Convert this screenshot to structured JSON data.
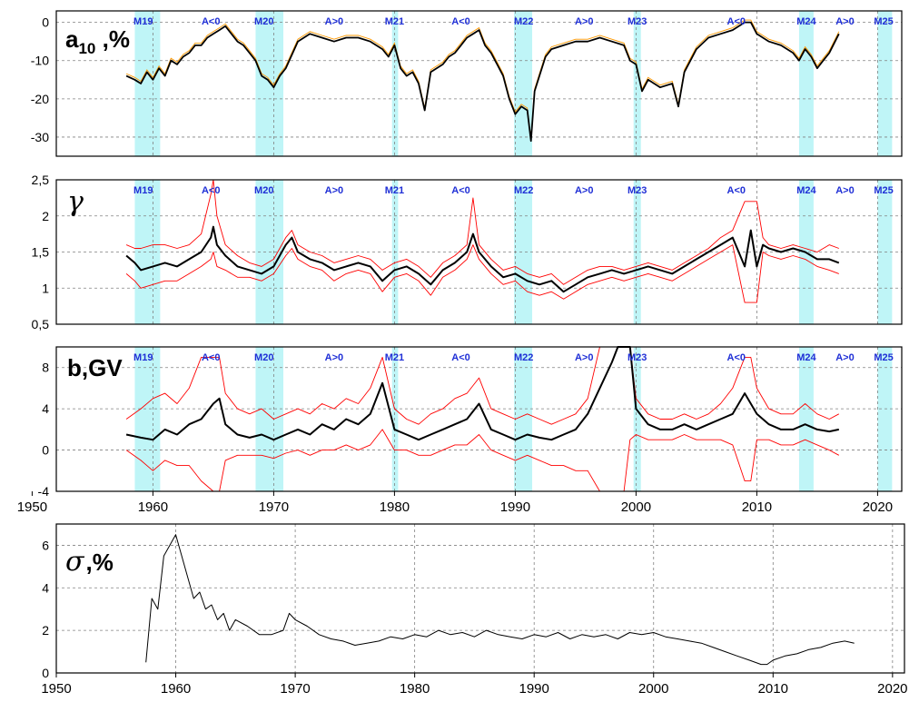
{
  "colors": {
    "band": "#bff5f7",
    "main_line": "#000000",
    "a10_secondary": "#ff9900",
    "band_line": "#ff0000",
    "sigma_line": "#000000",
    "cycle_label": "#1f2fd6"
  },
  "chart_data": [
    {
      "type": "line",
      "title": "a10 ,%",
      "title_main": "a",
      "title_sub": "10",
      "title_suffix": " ,%",
      "xlim": [
        1952,
        2022
      ],
      "ylim": [
        -35,
        3
      ],
      "yticks": [
        "0",
        "-10",
        "-20",
        "-30"
      ],
      "ytick_values": [
        0,
        -10,
        -20,
        -30
      ],
      "grid": true,
      "x": [
        1957.8,
        1958.5,
        1959,
        1959.5,
        1960,
        1960.5,
        1961,
        1961.5,
        1962,
        1962.5,
        1963,
        1963.5,
        1964,
        1964.5,
        1965,
        1965.5,
        1966,
        1966.5,
        1967,
        1967.5,
        1968,
        1968.5,
        1969,
        1969.5,
        1970,
        1970.5,
        1971,
        1972,
        1973,
        1974,
        1975,
        1976,
        1977,
        1978,
        1979,
        1979.5,
        1980,
        1980.5,
        1981,
        1981.5,
        1982,
        1982.5,
        1983,
        1984,
        1984.5,
        1985,
        1985.5,
        1986,
        1986.5,
        1987,
        1987.5,
        1988,
        1988.5,
        1989,
        1989.5,
        1990,
        1990.5,
        1991,
        1991.3,
        1991.6,
        1992,
        1992.5,
        1993,
        1994,
        1995,
        1996,
        1997,
        1998,
        1999,
        1999.5,
        2000,
        2000.5,
        2001,
        2002,
        2003,
        2003.5,
        2004,
        2005,
        2006,
        2007,
        2008,
        2009,
        2009.5,
        2010,
        2011,
        2012,
        2013,
        2013.5,
        2014,
        2014.5,
        2015,
        2015.5,
        2016,
        2016.8
      ],
      "series": [
        {
          "values": [
            -14,
            -15,
            -16,
            -13,
            -15,
            -12,
            -14,
            -10,
            -11,
            -9,
            -8,
            -6,
            -6,
            -4,
            -3,
            -2,
            -1,
            -3,
            -5,
            -6,
            -8,
            -10,
            -14,
            -15,
            -17,
            -14,
            -12,
            -5,
            -3,
            -4,
            -5,
            -4,
            -4,
            -5,
            -7,
            -9,
            -6,
            -12,
            -14,
            -13,
            -16,
            -23,
            -13,
            -11,
            -9,
            -8,
            -6,
            -4,
            -3,
            -2,
            -6,
            -8,
            -11,
            -14,
            -20,
            -24,
            -22,
            -23,
            -31,
            -18,
            -14,
            -9,
            -7,
            -6,
            -5,
            -5,
            -4,
            -5,
            -6,
            -10,
            -11,
            -18,
            -15,
            -17,
            -16,
            -22,
            -13,
            -7,
            -4,
            -3,
            -2,
            0,
            0,
            -3,
            -5,
            -6,
            -8,
            -10,
            -7,
            -9,
            -12,
            -10,
            -8,
            -3
          ]
        }
      ],
      "cycle_labels": [
        {
          "text": "M19",
          "x": 1959.2
        },
        {
          "text": "A<0",
          "x": 1964.8
        },
        {
          "text": "M20",
          "x": 1969.2
        },
        {
          "text": "A>0",
          "x": 1975
        },
        {
          "text": "M21",
          "x": 1980
        },
        {
          "text": "A<0",
          "x": 1985.5
        },
        {
          "text": "M22",
          "x": 1990.7
        },
        {
          "text": "A>0",
          "x": 1995.7
        },
        {
          "text": "M23",
          "x": 2000.1
        },
        {
          "text": "A<0",
          "x": 2008.3
        },
        {
          "text": "M24",
          "x": 2014.1
        },
        {
          "text": "A>0",
          "x": 2017.3
        },
        {
          "text": "M25",
          "x": 2020.5
        }
      ]
    },
    {
      "type": "line",
      "title": "γ",
      "xlim": [
        1952,
        2022
      ],
      "ylim": [
        0.5,
        2.5
      ],
      "yticks": [
        "2,5",
        "2",
        "1,5",
        "1",
        "0,5"
      ],
      "ytick_values": [
        2.5,
        2,
        1.5,
        1,
        0.5
      ],
      "grid": true,
      "x": [
        1957.8,
        1958.5,
        1959,
        1960,
        1961,
        1962,
        1963,
        1964,
        1964.8,
        1965,
        1965.3,
        1966,
        1967,
        1968,
        1969,
        1970,
        1971,
        1971.5,
        1972,
        1973,
        1974,
        1975,
        1976,
        1977,
        1978,
        1979,
        1980,
        1981,
        1982,
        1983,
        1984,
        1985,
        1986,
        1986.5,
        1987,
        1988,
        1989,
        1990,
        1991,
        1992,
        1993,
        1994,
        1995,
        1996,
        1997,
        1998,
        1999,
        2000,
        2001,
        2002,
        2003,
        2004,
        2005,
        2006,
        2007,
        2008,
        2009,
        2009.5,
        2010,
        2010.5,
        2011,
        2012,
        2013,
        2014,
        2015,
        2016,
        2016.8
      ],
      "series": [
        {
          "values": [
            1.45,
            1.35,
            1.25,
            1.3,
            1.35,
            1.3,
            1.4,
            1.5,
            1.7,
            1.85,
            1.6,
            1.45,
            1.3,
            1.25,
            1.2,
            1.3,
            1.6,
            1.7,
            1.5,
            1.4,
            1.35,
            1.25,
            1.3,
            1.35,
            1.3,
            1.1,
            1.25,
            1.3,
            1.2,
            1.05,
            1.25,
            1.35,
            1.5,
            1.75,
            1.5,
            1.3,
            1.15,
            1.2,
            1.1,
            1.05,
            1.1,
            0.95,
            1.05,
            1.15,
            1.2,
            1.25,
            1.2,
            1.25,
            1.3,
            1.25,
            1.2,
            1.3,
            1.4,
            1.5,
            1.6,
            1.7,
            1.3,
            1.8,
            1.3,
            1.6,
            1.55,
            1.5,
            1.55,
            1.5,
            1.4,
            1.4,
            1.35
          ]
        },
        {
          "values": [
            1.6,
            1.55,
            1.55,
            1.6,
            1.6,
            1.55,
            1.6,
            1.75,
            2.3,
            2.5,
            2.0,
            1.6,
            1.45,
            1.35,
            1.3,
            1.4,
            1.7,
            1.8,
            1.6,
            1.5,
            1.45,
            1.35,
            1.4,
            1.45,
            1.4,
            1.25,
            1.35,
            1.4,
            1.3,
            1.15,
            1.35,
            1.45,
            1.6,
            2.25,
            1.6,
            1.4,
            1.25,
            1.3,
            1.2,
            1.15,
            1.2,
            1.05,
            1.15,
            1.25,
            1.3,
            1.3,
            1.25,
            1.3,
            1.35,
            1.3,
            1.25,
            1.35,
            1.45,
            1.55,
            1.7,
            1.8,
            2.2,
            2.2,
            2.2,
            1.7,
            1.6,
            1.55,
            1.6,
            1.55,
            1.5,
            1.6,
            1.55
          ]
        },
        {
          "values": [
            1.2,
            1.1,
            1.0,
            1.05,
            1.1,
            1.1,
            1.2,
            1.3,
            1.4,
            1.5,
            1.3,
            1.25,
            1.15,
            1.15,
            1.1,
            1.2,
            1.45,
            1.55,
            1.4,
            1.3,
            1.25,
            1.1,
            1.2,
            1.25,
            1.2,
            0.95,
            1.15,
            1.2,
            1.1,
            0.9,
            1.15,
            1.25,
            1.4,
            1.6,
            1.4,
            1.2,
            1.05,
            1.1,
            0.95,
            0.9,
            0.95,
            0.85,
            0.95,
            1.05,
            1.1,
            1.15,
            1.1,
            1.15,
            1.2,
            1.15,
            1.1,
            1.2,
            1.3,
            1.4,
            1.5,
            1.6,
            0.8,
            0.8,
            0.8,
            1.5,
            1.45,
            1.4,
            1.45,
            1.4,
            1.3,
            1.25,
            1.2
          ]
        }
      ],
      "cycle_labels": [
        {
          "text": "M19",
          "x": 1959.2
        },
        {
          "text": "A<0",
          "x": 1964.8
        },
        {
          "text": "M20",
          "x": 1969.2
        },
        {
          "text": "A>0",
          "x": 1975
        },
        {
          "text": "M21",
          "x": 1980
        },
        {
          "text": "A<0",
          "x": 1985.5
        },
        {
          "text": "M22",
          "x": 1990.7
        },
        {
          "text": "A>0",
          "x": 1995.7
        },
        {
          "text": "M23",
          "x": 2000.1
        },
        {
          "text": "A<0",
          "x": 2008.3
        },
        {
          "text": "M24",
          "x": 2014.1
        },
        {
          "text": "A>0",
          "x": 2017.3
        },
        {
          "text": "M25",
          "x": 2020.5
        }
      ]
    },
    {
      "type": "line",
      "title": "b,GV",
      "xlim": [
        1952,
        2022
      ],
      "ylim": [
        -4,
        10
      ],
      "yticks": [
        "8",
        "4",
        "0",
        "-4"
      ],
      "ytick_values": [
        8,
        4,
        0,
        -4
      ],
      "xticks": [
        1950,
        1960,
        1970,
        1980,
        1990,
        2000,
        2010,
        2020
      ],
      "xtick_labels": [
        "1950",
        "1960",
        "1970",
        "1980",
        "1990",
        "2000",
        "2010",
        "2020"
      ],
      "grid": true,
      "x": [
        1957.8,
        1959,
        1960,
        1961,
        1962,
        1963,
        1964,
        1965,
        1965.5,
        1966,
        1967,
        1968,
        1969,
        1970,
        1971,
        1972,
        1973,
        1974,
        1975,
        1976,
        1977,
        1978,
        1979,
        1980,
        1981,
        1982,
        1983,
        1984,
        1985,
        1986,
        1987,
        1988,
        1989,
        1990,
        1991,
        1992,
        1993,
        1994,
        1995,
        1996,
        1997,
        1998,
        1998.5,
        1999,
        1999.5,
        2000,
        2001,
        2002,
        2003,
        2004,
        2005,
        2006,
        2007,
        2008,
        2009,
        2009.5,
        2010,
        2011,
        2012,
        2013,
        2014,
        2015,
        2016,
        2016.8
      ],
      "series": [
        {
          "values": [
            1.5,
            1.2,
            1.0,
            2.0,
            1.5,
            2.5,
            3.0,
            4.5,
            5.0,
            2.5,
            1.5,
            1.2,
            1.5,
            1.0,
            1.5,
            2.0,
            1.5,
            2.5,
            2.0,
            3.0,
            2.5,
            3.5,
            6.5,
            2.0,
            1.5,
            1.0,
            1.5,
            2.0,
            2.5,
            3.0,
            4.5,
            2.0,
            1.5,
            1.0,
            1.5,
            1.2,
            1.0,
            1.5,
            2.0,
            3.5,
            6.0,
            8.5,
            10.0,
            10.0,
            10.0,
            4.0,
            2.5,
            2.0,
            2.0,
            2.5,
            2.0,
            2.5,
            3.0,
            3.5,
            5.5,
            4.5,
            3.5,
            2.5,
            2.0,
            2.0,
            2.5,
            2.0,
            1.8,
            2.0
          ]
        },
        {
          "values": [
            3.0,
            4.0,
            5.0,
            5.5,
            4.5,
            6.0,
            9.0,
            9.0,
            9.0,
            5.5,
            4.0,
            3.5,
            4.0,
            3.0,
            3.5,
            4.0,
            3.5,
            4.5,
            4.0,
            5.0,
            4.5,
            6.0,
            9.0,
            4.0,
            3.0,
            2.5,
            3.5,
            4.0,
            5.0,
            5.5,
            7.0,
            4.0,
            3.5,
            3.0,
            3.5,
            3.0,
            2.5,
            3.0,
            3.5,
            5.0,
            10.0,
            10.0,
            10.0,
            10.0,
            10.0,
            5.0,
            3.5,
            3.0,
            3.0,
            3.5,
            3.0,
            3.5,
            4.5,
            6.0,
            9.0,
            9.0,
            6.0,
            4.0,
            3.5,
            3.5,
            4.5,
            3.5,
            3.0,
            3.5
          ]
        },
        {
          "values": [
            0.0,
            -1.0,
            -2.0,
            -1.0,
            -1.5,
            -1.5,
            -3.0,
            -4.0,
            -4.0,
            -1.0,
            -0.5,
            -0.5,
            -0.5,
            -0.8,
            -0.3,
            0.0,
            -0.5,
            0.0,
            0.0,
            0.5,
            0.0,
            0.5,
            2.0,
            0.0,
            0.0,
            -0.5,
            -0.5,
            0.0,
            0.5,
            0.5,
            1.5,
            0.0,
            -0.5,
            -1.0,
            -0.5,
            -1.0,
            -1.5,
            -1.5,
            -2.0,
            -2.0,
            -4.0,
            -4.0,
            -4.0,
            -4.0,
            1.0,
            1.5,
            1.0,
            1.0,
            1.0,
            1.5,
            1.0,
            1.0,
            1.0,
            0.5,
            -3.0,
            -3.0,
            1.0,
            1.0,
            0.5,
            0.5,
            1.0,
            0.5,
            0.0,
            -0.5
          ]
        }
      ],
      "cycle_labels": [
        {
          "text": "M19",
          "x": 1959.2
        },
        {
          "text": "A<0",
          "x": 1964.8
        },
        {
          "text": "M20",
          "x": 1969.2
        },
        {
          "text": "A>0",
          "x": 1975
        },
        {
          "text": "M21",
          "x": 1980
        },
        {
          "text": "A<0",
          "x": 1985.5
        },
        {
          "text": "M22",
          "x": 1990.7
        },
        {
          "text": "A>0",
          "x": 1995.7
        },
        {
          "text": "M23",
          "x": 2000.1
        },
        {
          "text": "A<0",
          "x": 2008.3
        },
        {
          "text": "M24",
          "x": 2014.1
        },
        {
          "text": "A>0",
          "x": 2017.3
        },
        {
          "text": "M25",
          "x": 2020.5
        }
      ]
    },
    {
      "type": "line",
      "title": "σ,%",
      "title_main": "σ",
      "title_suffix": ",%",
      "xlim": [
        1950,
        2021
      ],
      "ylim": [
        0,
        7
      ],
      "yticks": [
        "6",
        "4",
        "2",
        "0"
      ],
      "ytick_values": [
        6,
        4,
        2,
        0
      ],
      "xticks": [
        1950,
        1960,
        1970,
        1980,
        1990,
        2000,
        2010,
        2020
      ],
      "xtick_labels": [
        "1950",
        "1960",
        "1970",
        "1980",
        "1990",
        "2000",
        "2010",
        "2020"
      ],
      "grid": true,
      "x": [
        1957.5,
        1958,
        1958.5,
        1959,
        1959.5,
        1960,
        1960.5,
        1961,
        1961.5,
        1962,
        1962.5,
        1963,
        1963.5,
        1964,
        1964.5,
        1965,
        1966,
        1967,
        1968,
        1969,
        1969.5,
        1970,
        1971,
        1972,
        1973,
        1974,
        1975,
        1976,
        1977,
        1978,
        1979,
        1980,
        1981,
        1982,
        1983,
        1984,
        1985,
        1986,
        1987,
        1988,
        1989,
        1990,
        1991,
        1992,
        1993,
        1994,
        1995,
        1996,
        1997,
        1998,
        1999,
        2000,
        2001,
        2002,
        2003,
        2004,
        2005,
        2006,
        2007,
        2008,
        2009,
        2009.5,
        2010,
        2011,
        2012,
        2013,
        2014,
        2015,
        2016,
        2016.8
      ],
      "series": [
        {
          "values": [
            0.5,
            3.5,
            3.0,
            5.5,
            6.0,
            6.5,
            5.5,
            4.5,
            3.5,
            3.8,
            3.0,
            3.2,
            2.5,
            2.8,
            2.0,
            2.5,
            2.2,
            1.8,
            1.8,
            2.0,
            2.8,
            2.5,
            2.2,
            1.8,
            1.6,
            1.5,
            1.3,
            1.4,
            1.5,
            1.7,
            1.6,
            1.8,
            1.7,
            2.0,
            1.8,
            1.9,
            1.7,
            2.0,
            1.8,
            1.7,
            1.6,
            1.8,
            1.7,
            1.9,
            1.6,
            1.8,
            1.7,
            1.8,
            1.6,
            1.9,
            1.8,
            1.9,
            1.7,
            1.6,
            1.5,
            1.4,
            1.2,
            1.0,
            0.8,
            0.6,
            0.4,
            0.4,
            0.6,
            0.8,
            0.9,
            1.1,
            1.2,
            1.4,
            1.5,
            1.4
          ]
        }
      ]
    }
  ]
}
